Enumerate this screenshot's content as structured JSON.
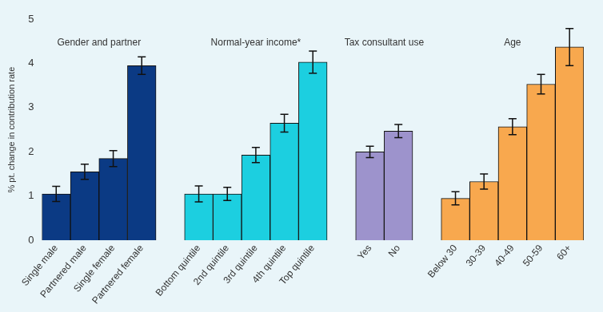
{
  "chart_data": {
    "type": "bar",
    "y_label": "% pt. change in contribution rate",
    "ylim": [
      0,
      5
    ],
    "yticks": [
      0,
      1,
      2,
      3,
      4,
      5
    ],
    "grid": false,
    "groups": [
      {
        "name": "Gender and partner",
        "color": "#0b3a84",
        "categories": [
          "Single male",
          "Partnered male",
          "Single female",
          "Partnered female"
        ],
        "values": [
          1.05,
          1.55,
          1.85,
          3.95
        ],
        "errors": [
          0.17,
          0.17,
          0.18,
          0.2
        ]
      },
      {
        "name": "Normal-year income*",
        "color": "#1ccfe0",
        "categories": [
          "Bottom quintile",
          "2nd quintile",
          "3rd quintile",
          "4th quintile",
          "Top quintile"
        ],
        "values": [
          1.05,
          1.05,
          1.93,
          2.65,
          4.03
        ],
        "errors": [
          0.18,
          0.15,
          0.17,
          0.2,
          0.25
        ]
      },
      {
        "name": "Tax consultant use",
        "color": "#9d93cc",
        "categories": [
          "Yes",
          "No"
        ],
        "values": [
          2.0,
          2.47
        ],
        "errors": [
          0.13,
          0.15
        ]
      },
      {
        "name": "Age",
        "color": "#f8a84e",
        "categories": [
          "Below 30",
          "30-39",
          "40-49",
          "50-59",
          "60+"
        ],
        "values": [
          0.95,
          1.33,
          2.57,
          3.53,
          4.37
        ],
        "errors": [
          0.15,
          0.17,
          0.18,
          0.22,
          0.42
        ]
      }
    ]
  }
}
